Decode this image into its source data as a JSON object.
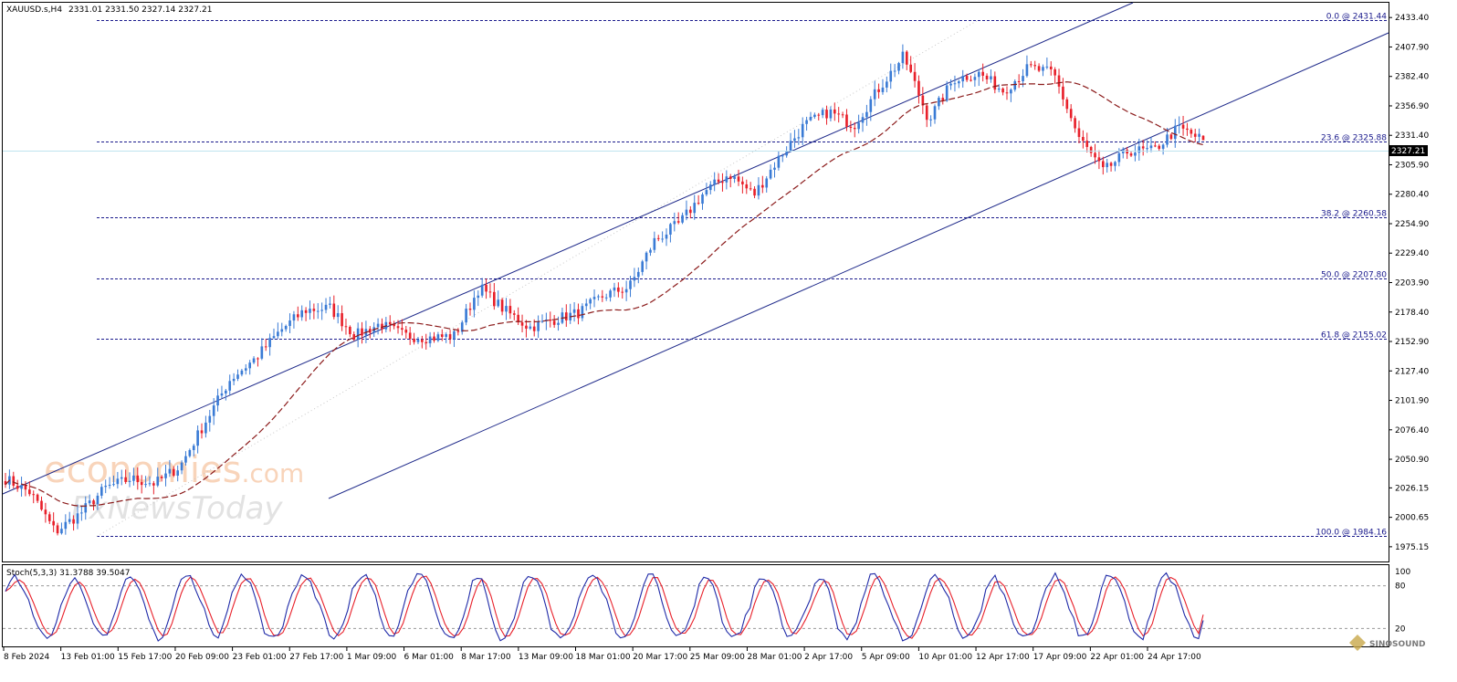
{
  "header": {
    "symbol_timeframe": "XAUUSD.s,H4",
    "ohlc": "2331.01 2331.50 2327.14 2327.21"
  },
  "price_panel": {
    "current_price": "2327.21",
    "price_ticks": [
      "2433.40",
      "2407.90",
      "2382.40",
      "2356.90",
      "2331.40",
      "2305.90",
      "2280.40",
      "2254.90",
      "2229.40",
      "2203.90",
      "2178.40",
      "2152.90",
      "2127.40",
      "2101.90",
      "2076.40",
      "2050.90",
      "2026.15",
      "2000.65",
      "1975.15"
    ],
    "fib_levels": [
      {
        "label": "0.0 @ 2431.44",
        "price": 2431.44
      },
      {
        "label": "23.6 @ 2325.88",
        "price": 2325.88
      },
      {
        "label": "38.2 @ 2260.58",
        "price": 2260.58
      },
      {
        "label": "50.0 @ 2207.80",
        "price": 2207.8
      },
      {
        "label": "61.8 @ 2155.02",
        "price": 2155.02
      },
      {
        "label": "100.0 @ 1984.16",
        "price": 1984.16
      }
    ]
  },
  "indicator_panel": {
    "title": "Stoch(5,3,3) 31.3788 39.5047",
    "ticks": [
      "100",
      "80",
      "20"
    ]
  },
  "time_axis": {
    "labels": [
      "8 Feb 2024",
      "13 Feb 01:00",
      "15 Feb 17:00",
      "20 Feb 09:00",
      "23 Feb 01:00",
      "27 Feb 17:00",
      "1 Mar 09:00",
      "6 Mar 01:00",
      "8 Mar 17:00",
      "13 Mar 09:00",
      "18 Mar 01:00",
      "20 Mar 17:00",
      "25 Mar 09:00",
      "28 Mar 01:00",
      "2 Apr 17:00",
      "5 Apr 09:00",
      "10 Apr 01:00",
      "12 Apr 17:00",
      "17 Apr 09:00",
      "22 Apr 01:00",
      "24 Apr 17:00"
    ]
  },
  "watermarks": {
    "brand": "economies",
    "brand_suffix": ".com",
    "brand2": "FxNewsToday",
    "corner": "SINOSOUND"
  },
  "colors": {
    "bull": "#3a7bd5",
    "bear": "#e8202a",
    "channel": "#1f2a8a",
    "fib": "#1a1a8c",
    "ma": "#8b1a1a",
    "stoch_main": "#1f2aa8",
    "stoch_signal": "#e8202a",
    "watermark": "#f4b183"
  },
  "chart_data": {
    "type": "candlestick",
    "symbol": "XAUUSD.s",
    "timeframe": "H4",
    "ylim": [
      1962.4,
      2446.2
    ],
    "close_path": [
      {
        "date": "8 Feb 2024",
        "close": 2034
      },
      {
        "date": "13 Feb 01:00",
        "close": 2022
      },
      {
        "date": "14 Feb",
        "close": 1988
      },
      {
        "date": "15 Feb 17:00",
        "close": 2004
      },
      {
        "date": "20 Feb 09:00",
        "close": 2026
      },
      {
        "date": "23 Feb 01:00",
        "close": 2034
      },
      {
        "date": "27 Feb 17:00",
        "close": 2030
      },
      {
        "date": "29 Feb",
        "close": 2045
      },
      {
        "date": "1 Mar 09:00",
        "close": 2083
      },
      {
        "date": "4 Mar",
        "close": 2120
      },
      {
        "date": "6 Mar 01:00",
        "close": 2138
      },
      {
        "date": "7 Mar",
        "close": 2162
      },
      {
        "date": "8 Mar 17:00",
        "close": 2180
      },
      {
        "date": "11 Mar",
        "close": 2182
      },
      {
        "date": "12 Mar",
        "close": 2158
      },
      {
        "date": "13 Mar 09:00",
        "close": 2168
      },
      {
        "date": "15 Mar",
        "close": 2158
      },
      {
        "date": "18 Mar 01:00",
        "close": 2156
      },
      {
        "date": "19 Mar",
        "close": 2158
      },
      {
        "date": "20 Mar 17:00",
        "close": 2200
      },
      {
        "date": "21 Mar",
        "close": 2180
      },
      {
        "date": "22 Mar",
        "close": 2165
      },
      {
        "date": "25 Mar 09:00",
        "close": 2172
      },
      {
        "date": "26 Mar",
        "close": 2178
      },
      {
        "date": "27 Mar",
        "close": 2193
      },
      {
        "date": "28 Mar 01:00",
        "close": 2200
      },
      {
        "date": "29 Mar",
        "close": 2240
      },
      {
        "date": "1 Apr",
        "close": 2255
      },
      {
        "date": "2 Apr 17:00",
        "close": 2282
      },
      {
        "date": "3 Apr",
        "close": 2298
      },
      {
        "date": "4 Apr",
        "close": 2280
      },
      {
        "date": "5 Apr 09:00",
        "close": 2312
      },
      {
        "date": "8 Apr",
        "close": 2340
      },
      {
        "date": "9 Apr",
        "close": 2352
      },
      {
        "date": "10 Apr 01:00",
        "close": 2340
      },
      {
        "date": "11 Apr",
        "close": 2372
      },
      {
        "date": "12 Apr",
        "close": 2400
      },
      {
        "date": "12 Apr 17:00",
        "close": 2345
      },
      {
        "date": "15 Apr",
        "close": 2380
      },
      {
        "date": "16 Apr",
        "close": 2385
      },
      {
        "date": "17 Apr 09:00",
        "close": 2370
      },
      {
        "date": "18 Apr",
        "close": 2390
      },
      {
        "date": "19 Apr",
        "close": 2385
      },
      {
        "date": "22 Apr 01:00",
        "close": 2330
      },
      {
        "date": "22 Apr",
        "close": 2300
      },
      {
        "date": "23 Apr",
        "close": 2318
      },
      {
        "date": "24 Apr 17:00",
        "close": 2318
      },
      {
        "date": "25 Apr",
        "close": 2338
      },
      {
        "date": "26 Apr",
        "close": 2327.21
      }
    ],
    "last_bar": {
      "open": 2331.01,
      "high": 2331.5,
      "low": 2327.14,
      "close": 2327.21
    },
    "fibonacci": [
      {
        "level": 0.0,
        "price": 2431.44
      },
      {
        "level": 23.6,
        "price": 2325.88
      },
      {
        "level": 38.2,
        "price": 2260.58
      },
      {
        "level": 50.0,
        "price": 2207.8
      },
      {
        "level": 61.8,
        "price": 2155.02
      },
      {
        "level": 100.0,
        "price": 1984.16
      }
    ],
    "stochastic": {
      "params": "5,3,3",
      "main": 31.3788,
      "signal": 39.5047,
      "levels": [
        80,
        20
      ]
    }
  }
}
